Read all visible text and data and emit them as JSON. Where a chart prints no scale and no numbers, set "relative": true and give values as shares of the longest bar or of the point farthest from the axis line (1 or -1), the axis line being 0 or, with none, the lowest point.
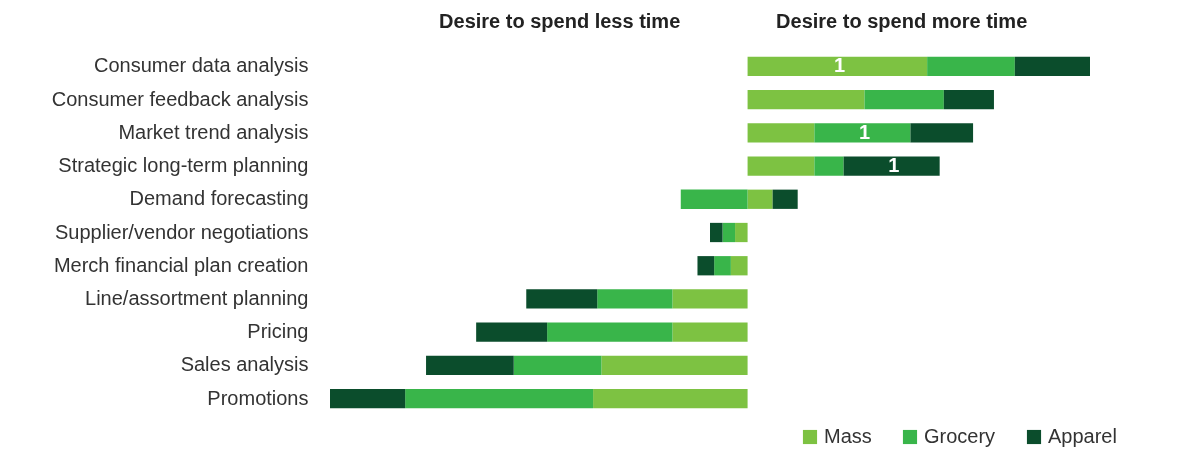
{
  "chart_data": {
    "type": "bar",
    "orientation": "horizontal",
    "stacked": true,
    "relative": true,
    "legend": "bottom right",
    "annotations": [
      "Desire to spend less time",
      "Desire to spend more time",
      {
        "text": "1",
        "x": 0.22,
        "y": "Consumer data analysis"
      },
      {
        "text": "1",
        "x": 0.28,
        "y": "Market trend analysis"
      },
      {
        "text": "1",
        "x": 0.35,
        "y": "Strategic long-term planning"
      }
    ],
    "categories": [
      "Consumer data analysis",
      "Consumer feedback analysis",
      "Market trend analysis",
      "Strategic long-term planning",
      "Demand forecasting",
      "Supplier/vendor negotiations",
      "Merch financial plan creation",
      "Line/assortment planning",
      "Pricing",
      "Sales analysis",
      "Promotions"
    ],
    "series": [
      {
        "name": "Mass",
        "color": "#7dc242",
        "values": [
          0.43,
          0.28,
          0.16,
          0.16,
          0.06,
          -0.03,
          -0.04,
          -0.18,
          -0.18,
          -0.35,
          -0.37
        ]
      },
      {
        "name": "Grocery",
        "color": "#39b54a",
        "values": [
          0.21,
          0.19,
          0.23,
          0.07,
          -0.16,
          -0.03,
          -0.04,
          -0.18,
          -0.3,
          -0.21,
          -0.45
        ]
      },
      {
        "name": "Apparel",
        "color": "#0b4d2c",
        "values": [
          0.18,
          0.12,
          0.15,
          0.23,
          0.06,
          -0.03,
          -0.04,
          -0.17,
          -0.17,
          -0.21,
          -0.18
        ]
      }
    ]
  }
}
